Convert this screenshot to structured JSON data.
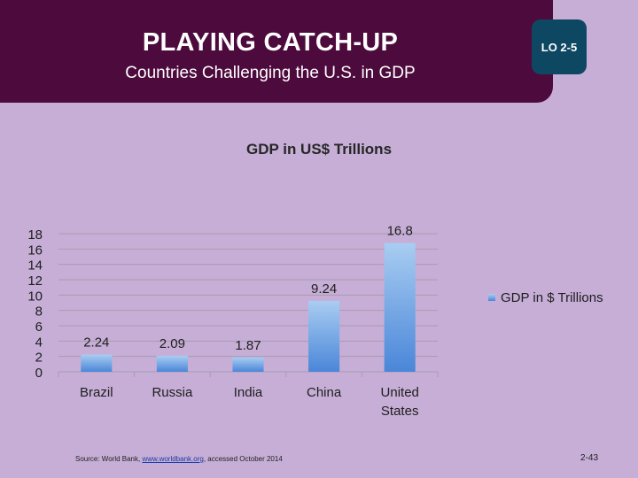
{
  "header": {
    "title": "PLAYING CATCH-UP",
    "subtitle": "Countries Challenging the U.S. in GDP",
    "lo_badge": "LO 2-5"
  },
  "colors": {
    "header_bg": "#4d0a3c",
    "badge_bg": "#0e4761",
    "background": "#c6aed6",
    "bar_top": "#a9cdf2",
    "bar_bottom": "#4a86d8"
  },
  "chart_data": {
    "type": "bar",
    "title": "GDP in US$ Trillions",
    "categories": [
      [
        "Brazil"
      ],
      [
        "Russia"
      ],
      [
        "India"
      ],
      [
        "China"
      ],
      [
        "United",
        "States"
      ]
    ],
    "series": [
      {
        "name": "GDP in $ Trillions",
        "values": [
          2.24,
          2.09,
          1.87,
          9.24,
          16.8
        ]
      }
    ],
    "data_labels": [
      "2.24",
      "2.09",
      "1.87",
      "9.24",
      "16.8"
    ],
    "yticks": [
      0,
      2,
      4,
      6,
      8,
      10,
      12,
      14,
      16,
      18
    ],
    "ylim": [
      0,
      18
    ],
    "xlabel": "",
    "ylabel": "",
    "grid": true,
    "legend_position": "right"
  },
  "footer": {
    "source_prefix": "Source: World Bank, ",
    "source_link": "www.worldbank.org",
    "source_suffix": ", accessed October 2014",
    "page_number": "2-43"
  }
}
